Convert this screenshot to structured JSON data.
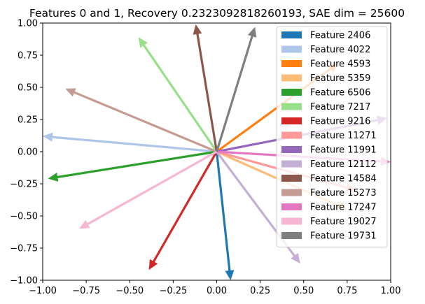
{
  "chart_data": {
    "type": "vector",
    "title": "Features 0 and 1, Recovery 0.2323092818260193, SAE dim = 25600",
    "xlim": [
      -1.0,
      1.0
    ],
    "ylim": [
      -1.0,
      1.0
    ],
    "xticks": [
      "−1.00",
      "−0.75",
      "−0.50",
      "−0.25",
      "0.00",
      "0.25",
      "0.50",
      "0.75",
      "1.00"
    ],
    "yticks": [
      "1.00",
      "0.75",
      "0.50",
      "0.25",
      "0.00",
      "−0.25",
      "−0.50",
      "−0.75",
      "−1.00"
    ],
    "xtick_values": [
      -1.0,
      -0.75,
      -0.5,
      -0.25,
      0.0,
      0.25,
      0.5,
      0.75,
      1.0
    ],
    "ytick_values": [
      1.0,
      0.75,
      0.5,
      0.25,
      0.0,
      -0.25,
      -0.5,
      -0.75,
      -1.0
    ],
    "legend_position": "upper right",
    "series": [
      {
        "name": "Feature 2406",
        "color": "#1f77b4",
        "dx": 0.08,
        "dy": -1.0
      },
      {
        "name": "Feature 4022",
        "color": "#aec7e8",
        "dx": -1.0,
        "dy": 0.12
      },
      {
        "name": "Feature 4593",
        "color": "#ff7f0e",
        "dx": 0.7,
        "dy": 0.69
      },
      {
        "name": "Feature 5359",
        "color": "#ffbb78",
        "dx": 0.75,
        "dy": -0.45
      },
      {
        "name": "Feature 6506",
        "color": "#2ca02c",
        "dx": -0.97,
        "dy": -0.21
      },
      {
        "name": "Feature 7217",
        "color": "#98df8a",
        "dx": -0.45,
        "dy": 0.89
      },
      {
        "name": "Feature 9216",
        "color": "#d62728",
        "dx": -0.39,
        "dy": -0.92
      },
      {
        "name": "Feature 11271",
        "color": "#ff9896",
        "dx": 0.8,
        "dy": -0.3
      },
      {
        "name": "Feature 11991",
        "color": "#9467bd",
        "dx": 0.98,
        "dy": 0.26
      },
      {
        "name": "Feature 12112",
        "color": "#c5b0d5",
        "dx": 0.48,
        "dy": -0.87
      },
      {
        "name": "Feature 14584",
        "color": "#8c564b",
        "dx": -0.12,
        "dy": 0.99
      },
      {
        "name": "Feature 15273",
        "color": "#c49c94",
        "dx": -0.87,
        "dy": 0.49
      },
      {
        "name": "Feature 17247",
        "color": "#e377c2",
        "dx": 1.0,
        "dy": -0.08
      },
      {
        "name": "Feature 19027",
        "color": "#f7b6d2",
        "dx": -0.79,
        "dy": -0.6
      },
      {
        "name": "Feature 19731",
        "color": "#7f7f7f",
        "dx": 0.22,
        "dy": 0.97
      }
    ]
  }
}
